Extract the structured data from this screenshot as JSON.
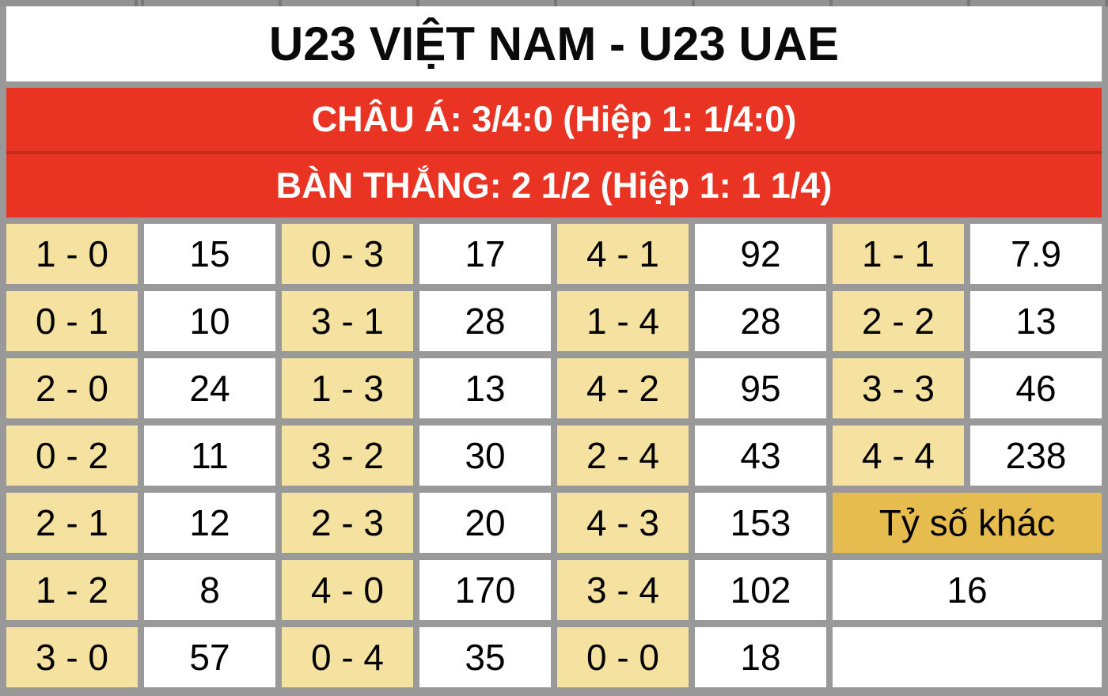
{
  "match": {
    "title": "U23 VIỆT NAM - U23 UAE"
  },
  "banners": {
    "asian_handicap": "CHÂU Á: 3/4:0 (Hiệp 1: 1/4:0)",
    "goals_total": "BÀN THẮNG: 2 1/2 (Hiệp 1: 1 1/4)"
  },
  "odds_grid": {
    "rows": [
      [
        {
          "score": "1 - 0",
          "odds": "15"
        },
        {
          "score": "0 - 3",
          "odds": "17"
        },
        {
          "score": "4 - 1",
          "odds": "92"
        },
        {
          "score": "1 - 1",
          "odds": "7.9"
        }
      ],
      [
        {
          "score": "0 - 1",
          "odds": "10"
        },
        {
          "score": "3 - 1",
          "odds": "28"
        },
        {
          "score": "1 - 4",
          "odds": "28"
        },
        {
          "score": "2 - 2",
          "odds": "13"
        }
      ],
      [
        {
          "score": "2 - 0",
          "odds": "24"
        },
        {
          "score": "1 - 3",
          "odds": "13"
        },
        {
          "score": "4 - 2",
          "odds": "95"
        },
        {
          "score": "3 - 3",
          "odds": "46"
        }
      ],
      [
        {
          "score": "0 - 2",
          "odds": "11"
        },
        {
          "score": "3 - 2",
          "odds": "30"
        },
        {
          "score": "2 - 4",
          "odds": "43"
        },
        {
          "score": "4 - 4",
          "odds": "238"
        }
      ],
      [
        {
          "score": "2 - 1",
          "odds": "12"
        },
        {
          "score": "2 - 3",
          "odds": "20"
        },
        {
          "score": "4 - 3",
          "odds": "153"
        }
      ],
      [
        {
          "score": "1 - 2",
          "odds": "8"
        },
        {
          "score": "4 - 0",
          "odds": "170"
        },
        {
          "score": "3 - 4",
          "odds": "102"
        }
      ],
      [
        {
          "score": "3 - 0",
          "odds": "57"
        },
        {
          "score": "0 - 4",
          "odds": "35"
        },
        {
          "score": "0 - 0",
          "odds": "18"
        }
      ]
    ],
    "other_score": {
      "label": "Tỷ số khác",
      "odds": "16"
    }
  },
  "colors": {
    "page_bg": "#999999",
    "banner_red": "#E93323",
    "banner_divider_red": "#C9291B",
    "score_cell_bg": "#F5E1A0",
    "other_score_gold": "#E7BC4E",
    "odds_cell_bg": "#FFFFFF",
    "banner_text": "#FFFFFF",
    "cell_text": "#000000"
  }
}
